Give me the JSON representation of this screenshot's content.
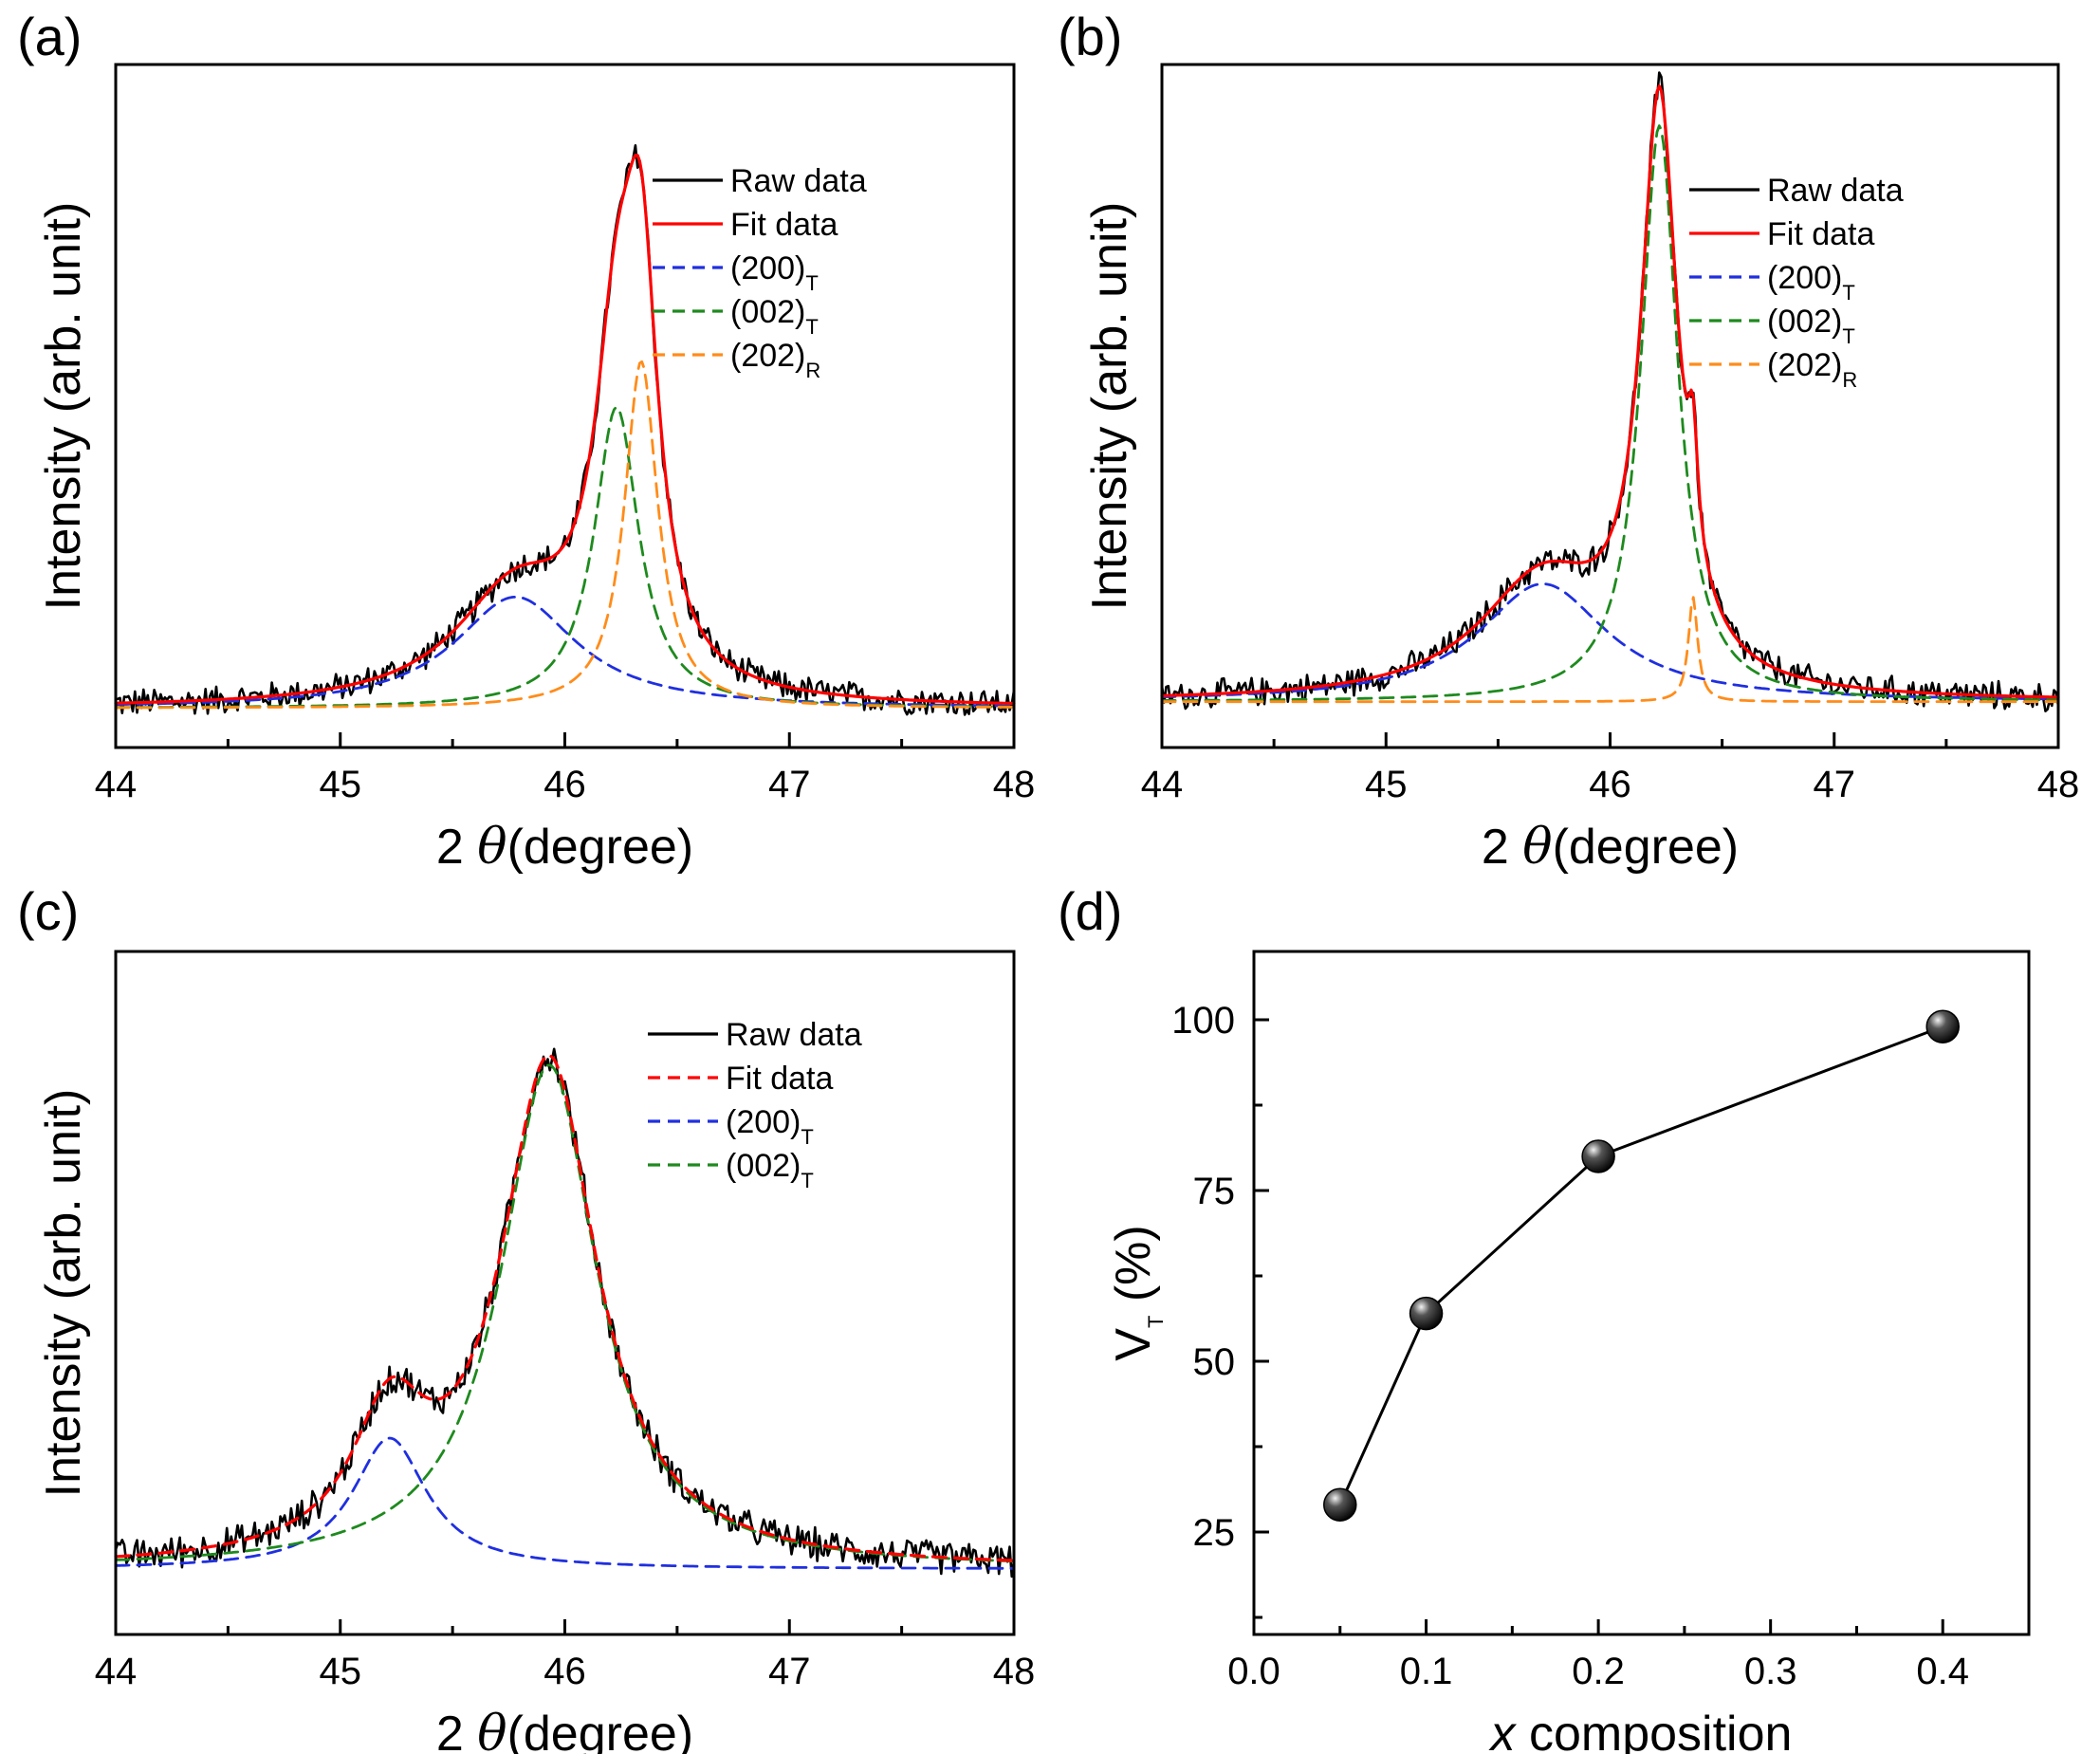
{
  "chart_data": [
    {
      "panel": "(a)",
      "type": "line",
      "xlabel_prefix": "2",
      "xlabel_symbol": "θ",
      "xlabel_suffix": "(degree)",
      "ylabel": "Intensity (arb. unit)",
      "xlim": [
        44,
        48
      ],
      "xticks": [
        "44",
        "45",
        "46",
        "47",
        "48"
      ],
      "legend": [
        {
          "label": "Raw data",
          "sub": "",
          "color": "#000000",
          "dash": false
        },
        {
          "label": "Fit data",
          "sub": "",
          "color": "#ff0000",
          "dash": false
        },
        {
          "label": "(200)",
          "sub": "T",
          "color": "#1f2fe0",
          "dash": true
        },
        {
          "label": "(002)",
          "sub": "T",
          "color": "#1e8a1e",
          "dash": true
        },
        {
          "label": "(202)",
          "sub": "R",
          "color": "#ff8c1a",
          "dash": true
        }
      ],
      "model": {
        "baseline": 0.06,
        "noise": 0.014,
        "peaks": [
          {
            "name": "(200)T",
            "center": 45.78,
            "amplitude": 0.17,
            "width": 0.33,
            "color": "#1f2fe0"
          },
          {
            "name": "(002)T",
            "center": 46.23,
            "amplitude": 0.46,
            "width": 0.12,
            "color": "#1e8a1e"
          },
          {
            "name": "(202)R",
            "center": 46.34,
            "amplitude": 0.53,
            "width": 0.09,
            "color": "#ff8c1a"
          }
        ]
      }
    },
    {
      "panel": "(b)",
      "type": "line",
      "xlabel_prefix": "2",
      "xlabel_symbol": "θ",
      "xlabel_suffix": "(degree)",
      "ylabel": "Intensity (arb. unit)",
      "xlim": [
        44,
        48
      ],
      "xticks": [
        "44",
        "45",
        "46",
        "47",
        "48"
      ],
      "legend": [
        {
          "label": "Raw data",
          "sub": "",
          "color": "#000000",
          "dash": false
        },
        {
          "label": "Fit data",
          "sub": "",
          "color": "#ff0000",
          "dash": false
        },
        {
          "label": "(200)",
          "sub": "T",
          "color": "#1f2fe0",
          "dash": true
        },
        {
          "label": "(002)",
          "sub": "T",
          "color": "#1e8a1e",
          "dash": true
        },
        {
          "label": "(202)",
          "sub": "R",
          "color": "#ff8c1a",
          "dash": true
        }
      ],
      "model": {
        "baseline": 0.07,
        "noise": 0.014,
        "peaks": [
          {
            "name": "(200)T",
            "center": 45.7,
            "amplitude": 0.18,
            "width": 0.35,
            "color": "#1f2fe0"
          },
          {
            "name": "(002)T",
            "center": 46.22,
            "amplitude": 0.88,
            "width": 0.1,
            "color": "#1e8a1e"
          },
          {
            "name": "(202)R",
            "center": 46.37,
            "amplitude": 0.16,
            "width": 0.025,
            "color": "#ff8c1a"
          }
        ]
      }
    },
    {
      "panel": "(c)",
      "type": "line",
      "xlabel_prefix": "2",
      "xlabel_symbol": "θ",
      "xlabel_suffix": "(degree)",
      "ylabel": "Intensity (arb. unit)",
      "xlim": [
        44,
        48
      ],
      "xticks": [
        "44",
        "45",
        "46",
        "47",
        "48"
      ],
      "legend": [
        {
          "label": "Raw data",
          "sub": "",
          "color": "#000000",
          "dash": false
        },
        {
          "label": "Fit data",
          "sub": "",
          "color": "#ff0000",
          "dash": true
        },
        {
          "label": "(200)",
          "sub": "T",
          "color": "#1f2fe0",
          "dash": true
        },
        {
          "label": "(002)",
          "sub": "T",
          "color": "#1e8a1e",
          "dash": true
        }
      ],
      "model": {
        "baseline": 0.1,
        "noise": 0.016,
        "peaks": [
          {
            "name": "(200)T",
            "center": 45.22,
            "amplitude": 0.2,
            "width": 0.2,
            "color": "#1f2fe0"
          },
          {
            "name": "(002)T",
            "center": 45.93,
            "amplitude": 0.77,
            "width": 0.26,
            "color": "#1e8a1e"
          }
        ]
      }
    },
    {
      "panel": "(d)",
      "type": "line",
      "xlabel_prefix": "",
      "xlabel_symbol": "x",
      "xlabel_suffix": " composition",
      "ylabel": "V",
      "ylabel_sub": "T",
      "ylabel_suffix": " (%)",
      "xlim": [
        0.0,
        0.45
      ],
      "ylim": [
        10,
        110
      ],
      "xticks": [
        "0.0",
        "0.1",
        "0.2",
        "0.3",
        "0.4"
      ],
      "yticks": [
        "25",
        "50",
        "75",
        "100"
      ],
      "x": [
        0.05,
        0.1,
        0.2,
        0.4
      ],
      "y": [
        29,
        57,
        80,
        99
      ]
    }
  ]
}
